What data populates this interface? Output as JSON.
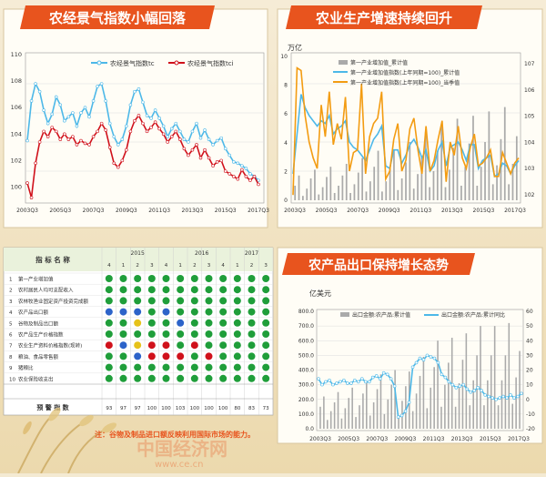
{
  "panel1": {
    "title": "农经景气指数小幅回落",
    "legend": [
      "农经景气指数tc",
      "农经景气指数tci"
    ],
    "colors": {
      "tc": "#4db8e8",
      "tci": "#d0111b"
    },
    "y_ticks": [
      "110",
      "108",
      "106",
      "104",
      "102",
      "100"
    ],
    "x_ticks": [
      "2003Q3",
      "2005Q3",
      "2007Q3",
      "2009Q3",
      "2011Q3",
      "2013Q3",
      "2015Q3",
      "2017Q3"
    ]
  },
  "panel2": {
    "title": "农业生产增速持续回升",
    "unit": "万亿",
    "legend": [
      "第一产业增加值_累计值",
      "第一产业增加值指数(上年同期=100)_累计值",
      "第一产业增加值指数(上年同期=100)_当季值"
    ],
    "colors": {
      "bar": "#aaaaaa",
      "cum": "#4db8e8",
      "q": "#f39c12"
    },
    "y_left": [
      "10",
      "8",
      "6",
      "4",
      "2",
      "0"
    ],
    "y_right": [
      "107",
      "106",
      "105",
      "104",
      "103",
      "102"
    ],
    "x_ticks": [
      "2003Q3",
      "2005Q3",
      "2007Q3",
      "2009Q3",
      "2011Q3",
      "2013Q3",
      "2015Q3",
      "2017Q3"
    ]
  },
  "panel3": {
    "title": "农产品出口保持增长态势",
    "unit": "亿美元",
    "legend": [
      "出口金额:农产品:累计值",
      "出口金额:农产品:累计同比"
    ],
    "colors": {
      "bar": "#aaaaaa",
      "line": "#4db8e8"
    },
    "y_left": [
      "800.0",
      "700.0",
      "600.0",
      "500.0",
      "400.0",
      "300.0",
      "200.0",
      "100.0",
      "0.0"
    ],
    "y_right": [
      "60",
      "50",
      "40",
      "30",
      "20",
      "10",
      "0",
      "-10",
      "-20"
    ],
    "x_ticks": [
      "2003Q3",
      "2005Q3",
      "2007Q3",
      "2009Q3",
      "2011Q3",
      "2013Q3",
      "2015Q3",
      "2017Q3"
    ]
  },
  "table": {
    "header_name": "指 标 名 称",
    "years": [
      "2015",
      "2016",
      "2017"
    ],
    "quarters": [
      "4",
      "1",
      "2",
      "3",
      "4",
      "1",
      "2",
      "3",
      "4",
      "1",
      "2",
      "3"
    ],
    "rows": [
      {
        "n": "1",
        "name": "第一产业增加值",
        "c": "GGGGGGGGGGGG"
      },
      {
        "n": "2",
        "name": "农村居民人均可支配收入",
        "c": "GGGGGGGGGGGG"
      },
      {
        "n": "3",
        "name": "农林牧渔业固定资产投资完成额",
        "c": "GGGGGGGGGGGG"
      },
      {
        "n": "4",
        "name": "农产品出口额",
        "c": "BBBGBGGGGGGG"
      },
      {
        "n": "5",
        "name": "谷物及制品出口额",
        "c": "GGYGGBGGGGGG"
      },
      {
        "n": "6",
        "name": "农产品生产价格指数",
        "c": "GGGGGGGGGGGG"
      },
      {
        "n": "7",
        "name": "农业生产资料价格指数(现转)",
        "c": "RBYRRGRGGGGG"
      },
      {
        "n": "8",
        "name": "粮油、食品零售额",
        "c": "GGBRRRGRGGGG"
      },
      {
        "n": "9",
        "name": "猪粮比",
        "c": "GGGGGGGGGGGG"
      },
      {
        "n": "10",
        "name": "农业保险收支出",
        "c": "GGGGGGGGGGGG"
      }
    ],
    "footer_label": "预 警 指 数",
    "footer_values": [
      "93",
      "97",
      "97",
      "100",
      "100",
      "103",
      "100",
      "100",
      "100",
      "80",
      "83",
      "73"
    ]
  },
  "note": "注：谷物及制品进口额反映利用国际市场的能力。",
  "watermark": "中国经济网",
  "watermark_url": "www.ce.cn",
  "chart_data": [
    {
      "type": "line",
      "title": "农经景气指数小幅回落",
      "x": [
        "2003Q3",
        "2003Q4",
        "2004Q1",
        "2004Q2",
        "2004Q3",
        "2004Q4",
        "2005Q1",
        "2005Q2",
        "2005Q3",
        "2005Q4",
        "2006Q1",
        "2006Q2",
        "2006Q3",
        "2006Q4",
        "2007Q1",
        "2007Q2",
        "2007Q3",
        "2007Q4",
        "2008Q1",
        "2008Q2",
        "2008Q3",
        "2008Q4",
        "2009Q1",
        "2009Q2",
        "2009Q3",
        "2009Q4",
        "2010Q1",
        "2010Q2",
        "2010Q3",
        "2010Q4",
        "2011Q1",
        "2011Q2",
        "2011Q3",
        "2011Q4",
        "2012Q1",
        "2012Q2",
        "2012Q3",
        "2012Q4",
        "2013Q1",
        "2013Q2",
        "2013Q3",
        "2013Q4",
        "2014Q1",
        "2014Q2",
        "2014Q3",
        "2014Q4",
        "2015Q1",
        "2015Q2",
        "2015Q3",
        "2015Q4",
        "2016Q1",
        "2016Q2",
        "2016Q3",
        "2016Q4",
        "2017Q1",
        "2017Q2",
        "2017Q3"
      ],
      "ylim": [
        99,
        110
      ],
      "series": [
        {
          "name": "农经景气指数tc",
          "values": [
            103.5,
            106.5,
            107.8,
            107.2,
            105.8,
            104.8,
            105.5,
            106.8,
            106.2,
            105.0,
            105.3,
            105.6,
            104.6,
            105.6,
            106.0,
            105.3,
            106.5,
            107.6,
            107.8,
            106.5,
            104.8,
            103.8,
            103.2,
            103.6,
            104.6,
            106.2,
            107.2,
            107.4,
            106.4,
            105.4,
            105.2,
            105.8,
            105.2,
            104.6,
            103.8,
            104.4,
            104.8,
            104.2,
            103.6,
            103.4,
            104.2,
            104.8,
            103.7,
            104.3,
            103.6,
            103.2,
            103.5,
            103.7,
            102.9,
            102.4,
            101.9,
            101.8,
            101.6,
            101.4,
            101.0,
            100.8,
            100.5
          ]
        },
        {
          "name": "农经景气指数tci",
          "values": [
            100.3,
            99.2,
            101.8,
            103.4,
            104.2,
            103.8,
            104.5,
            104.2,
            103.6,
            104.0,
            103.6,
            103.8,
            103.2,
            103.5,
            103.3,
            103.2,
            103.8,
            104.2,
            104.8,
            104.3,
            103.0,
            101.8,
            101.5,
            102.0,
            102.8,
            104.2,
            105.0,
            105.4,
            104.8,
            104.2,
            104.5,
            104.9,
            104.4,
            104.0,
            103.4,
            103.8,
            104.2,
            103.6,
            102.9,
            102.4,
            102.8,
            103.2,
            102.2,
            102.8,
            102.2,
            101.6,
            101.9,
            102.0,
            101.2,
            101.0,
            100.8,
            100.6,
            101.3,
            100.8,
            100.5,
            100.8,
            100.2
          ]
        }
      ]
    },
    {
      "type": "bar",
      "title": "农业生产增速持续回升",
      "ylabel": "万亿",
      "x": [
        "2003Q3",
        "2003Q4",
        "2004Q1",
        "2004Q2",
        "2004Q3",
        "2004Q4",
        "2005Q1",
        "2005Q2",
        "2005Q3",
        "2005Q4",
        "2006Q1",
        "2006Q2",
        "2006Q3",
        "2006Q4",
        "2007Q1",
        "2007Q2",
        "2007Q3",
        "2007Q4",
        "2008Q1",
        "2008Q2",
        "2008Q3",
        "2008Q4",
        "2009Q1",
        "2009Q2",
        "2009Q3",
        "2009Q4",
        "2010Q1",
        "2010Q2",
        "2010Q3",
        "2010Q4",
        "2011Q1",
        "2011Q2",
        "2011Q3",
        "2011Q4",
        "2012Q1",
        "2012Q2",
        "2012Q3",
        "2012Q4",
        "2013Q1",
        "2013Q2",
        "2013Q3",
        "2013Q4",
        "2014Q1",
        "2014Q2",
        "2014Q3",
        "2014Q4",
        "2015Q1",
        "2015Q2",
        "2015Q3",
        "2015Q4",
        "2016Q1",
        "2016Q2",
        "2016Q3",
        "2016Q4",
        "2017Q1",
        "2017Q2",
        "2017Q3"
      ],
      "ylim_left": [
        0,
        10
      ],
      "ylim_right": [
        102,
        107.5
      ],
      "series": [
        {
          "name": "第一产业增加值_累计值",
          "axis": "left",
          "values": [
            1.0,
            1.7,
            0.3,
            0.8,
            1.5,
            2.1,
            0.4,
            0.9,
            1.6,
            2.3,
            0.5,
            1.0,
            1.7,
            2.5,
            0.5,
            1.1,
            1.9,
            2.9,
            0.6,
            1.3,
            2.3,
            3.4,
            0.6,
            1.3,
            2.3,
            3.5,
            0.7,
            1.5,
            2.6,
            4.0,
            0.8,
            1.8,
            3.0,
            4.7,
            0.9,
            2.0,
            3.4,
            5.2,
            0.9,
            2.1,
            3.6,
            5.6,
            1.0,
            2.3,
            3.9,
            5.8,
            1.0,
            2.3,
            4.0,
            6.1,
            1.1,
            2.4,
            4.2,
            6.4,
            1.1,
            2.5,
            4.4
          ]
        },
        {
          "name": "第一产业增加值指数(上年同期=100)_累计值",
          "axis": "right",
          "values": [
            103.0,
            104.5,
            106.0,
            105.5,
            105.2,
            105.0,
            104.8,
            105.0,
            104.9,
            105.2,
            104.5,
            104.7,
            104.8,
            105.0,
            104.2,
            104.0,
            103.9,
            103.7,
            103.5,
            103.9,
            104.3,
            104.5,
            104.8,
            103.3,
            103.2,
            103.9,
            103.9,
            103.4,
            103.7,
            104.1,
            104.3,
            104.0,
            103.6,
            103.9,
            103.1,
            103.3,
            103.9,
            104.2,
            103.3,
            104.0,
            104.1,
            104.2,
            103.9,
            103.5,
            104.1,
            104.1,
            103.2,
            103.5,
            103.6,
            103.7,
            102.9,
            103.0,
            103.4,
            103.3,
            103.0,
            103.3,
            103.5
          ]
        },
        {
          "name": "第一产业增加值指数(上年同期=100)_当季值",
          "axis": "right",
          "values": [
            102.2,
            107.0,
            106.9,
            105.2,
            104.2,
            103.6,
            103.2,
            105.6,
            104.4,
            106.1,
            104.1,
            104.9,
            104.3,
            105.9,
            103.1,
            103.8,
            103.9,
            106.4,
            103.0,
            104.4,
            104.9,
            105.1,
            106.1,
            102.8,
            103.1,
            104.3,
            104.9,
            103.1,
            103.5,
            104.7,
            105.1,
            103.9,
            103.0,
            104.8,
            103.1,
            103.5,
            104.3,
            105.0,
            102.7,
            104.2,
            103.7,
            104.8,
            103.6,
            103.2,
            104.0,
            104.5,
            103.3,
            103.4,
            103.6,
            103.9,
            102.9,
            102.9,
            103.8,
            103.4,
            103.0,
            103.4,
            103.6
          ]
        }
      ]
    },
    {
      "type": "bar",
      "title": "农产品出口保持增长态势",
      "ylabel": "亿美元",
      "x": [
        "2003Q3",
        "2003Q4",
        "2004Q1",
        "2004Q2",
        "2004Q3",
        "2004Q4",
        "2005Q1",
        "2005Q2",
        "2005Q3",
        "2005Q4",
        "2006Q1",
        "2006Q2",
        "2006Q3",
        "2006Q4",
        "2007Q1",
        "2007Q2",
        "2007Q3",
        "2007Q4",
        "2008Q1",
        "2008Q2",
        "2008Q3",
        "2008Q4",
        "2009Q1",
        "2009Q2",
        "2009Q3",
        "2009Q4",
        "2010Q1",
        "2010Q2",
        "2010Q3",
        "2010Q4",
        "2011Q1",
        "2011Q2",
        "2011Q3",
        "2011Q4",
        "2012Q1",
        "2012Q2",
        "2012Q3",
        "2012Q4",
        "2013Q1",
        "2013Q2",
        "2013Q3",
        "2013Q4",
        "2014Q1",
        "2014Q2",
        "2014Q3",
        "2014Q4",
        "2015Q1",
        "2015Q2",
        "2015Q3",
        "2015Q4",
        "2016Q1",
        "2016Q2",
        "2016Q3",
        "2016Q4",
        "2017Q1",
        "2017Q2",
        "2017Q3"
      ],
      "ylim_left": [
        0,
        800
      ],
      "ylim_right": [
        -20,
        60
      ],
      "series": [
        {
          "name": "出口金额:农产品:累计值",
          "axis": "left",
          "values": [
            150,
            220,
            60,
            120,
            180,
            250,
            70,
            140,
            210,
            280,
            80,
            160,
            240,
            320,
            90,
            180,
            270,
            370,
            100,
            200,
            300,
            400,
            90,
            190,
            290,
            390,
            120,
            240,
            360,
            490,
            140,
            280,
            420,
            600,
            150,
            300,
            450,
            620,
            150,
            310,
            470,
            650,
            160,
            330,
            500,
            700,
            160,
            330,
            500,
            700,
            160,
            330,
            500,
            720,
            170,
            350,
            530
          ]
        },
        {
          "name": "出口金额:农产品:累计同比",
          "axis": "right",
          "values": [
            14,
            10,
            12,
            13,
            10,
            11,
            12,
            13,
            11,
            11,
            13,
            12,
            14,
            12,
            12,
            15,
            16,
            14,
            18,
            17,
            14,
            9,
            -12,
            -11,
            -8,
            -2,
            22,
            25,
            28,
            27,
            30,
            29,
            28,
            25,
            17,
            15,
            12,
            10,
            8,
            9,
            10,
            7,
            5,
            6,
            8,
            6,
            3,
            2,
            1,
            0,
            1,
            2,
            1,
            3,
            1,
            2,
            4
          ]
        }
      ]
    }
  ]
}
